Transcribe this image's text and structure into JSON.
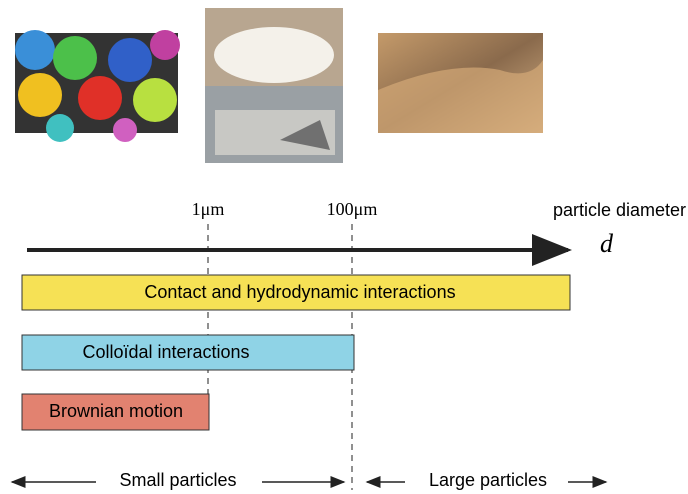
{
  "axis": {
    "ticks": [
      "1μm",
      "100μm"
    ],
    "label": "particle diameter",
    "symbol": "d"
  },
  "bars": [
    "Contact and hydrodynamic interactions",
    "Colloïdal interactions",
    "Brownian motion"
  ],
  "regions": [
    "Small particles",
    "Large particles"
  ]
}
